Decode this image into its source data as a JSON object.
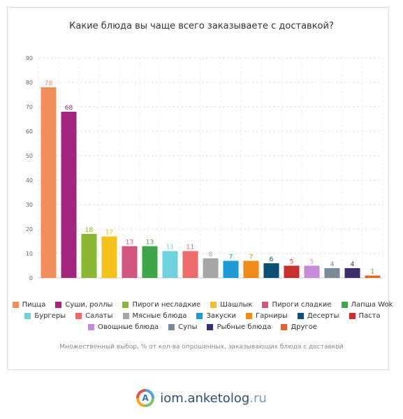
{
  "chart_data": {
    "type": "bar",
    "title": "Какие блюда вы чаще всего заказываете с доставкой?",
    "categories": [
      "Пицца",
      "Суши, роллы",
      "Пироги несладкие",
      "Шашлык",
      "Пироги сладкие",
      "Лапша Wok",
      "Бургеры",
      "Салаты",
      "Мясные блюда",
      "Закуски",
      "Гарниры",
      "Десерты",
      "Паста",
      "Овощные блюда",
      "Супы",
      "Рыбные блюда",
      "Другое"
    ],
    "values": [
      78,
      68,
      18,
      17,
      13,
      13,
      11,
      11,
      8,
      7,
      7,
      6,
      5,
      5,
      4,
      4,
      1
    ],
    "colors": [
      "#f28e5c",
      "#a3237d",
      "#8ab832",
      "#f5c21b",
      "#d1557f",
      "#3fa54a",
      "#6fd2dc",
      "#ef6a6a",
      "#a6a6a6",
      "#1c9ad6",
      "#f08a18",
      "#0b4f78",
      "#c8302e",
      "#c58ad8",
      "#7a8c9a",
      "#3a2d6e",
      "#e0662a"
    ],
    "ylim": [
      0,
      90
    ],
    "yticks": [
      0,
      10,
      20,
      30,
      40,
      50,
      60,
      70,
      80,
      90
    ],
    "grid": true,
    "legend_position": "bottom"
  },
  "note": "Множественный выбор, % от кол-ва опрошенных, заказывающих блюда с доставкой",
  "footer": {
    "brand": "iom.anketolog",
    "tld": ".ru",
    "logo_letter": "A"
  }
}
